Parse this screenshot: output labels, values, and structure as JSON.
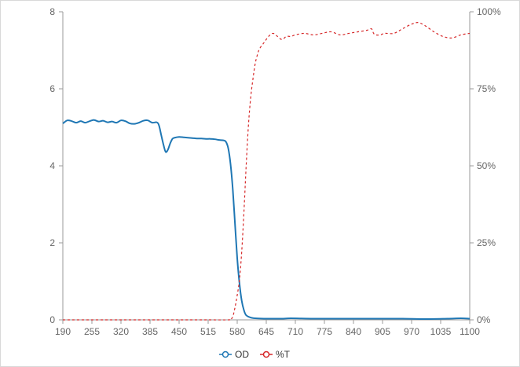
{
  "chart_data": {
    "type": "line",
    "title": "",
    "xlabel": "",
    "ylabel": "",
    "x_ticks": [
      "190",
      "255",
      "320",
      "385",
      "450",
      "515",
      "580",
      "645",
      "710",
      "775",
      "840",
      "905",
      "970",
      "1035",
      "1100"
    ],
    "xlim": [
      190,
      1100
    ],
    "y_left": {
      "ylim": [
        0,
        8
      ],
      "ticks": [
        "0",
        "2",
        "4",
        "6",
        "8"
      ]
    },
    "y_right": {
      "ylim": [
        0,
        100
      ],
      "ticks": [
        "0%",
        "25%",
        "50%",
        "75%",
        "100%"
      ],
      "unit": "%"
    },
    "legend": {
      "placement": "bottom-center"
    },
    "series": [
      {
        "name": "OD",
        "axis": "left",
        "color": "#1f77b4",
        "style": "solid",
        "points": [
          [
            190,
            5.1
          ],
          [
            200,
            5.18
          ],
          [
            210,
            5.16
          ],
          [
            220,
            5.12
          ],
          [
            230,
            5.16
          ],
          [
            240,
            5.12
          ],
          [
            250,
            5.16
          ],
          [
            260,
            5.19
          ],
          [
            270,
            5.15
          ],
          [
            280,
            5.17
          ],
          [
            290,
            5.13
          ],
          [
            300,
            5.15
          ],
          [
            310,
            5.12
          ],
          [
            320,
            5.18
          ],
          [
            330,
            5.16
          ],
          [
            340,
            5.1
          ],
          [
            350,
            5.09
          ],
          [
            360,
            5.12
          ],
          [
            370,
            5.17
          ],
          [
            380,
            5.18
          ],
          [
            390,
            5.12
          ],
          [
            400,
            5.13
          ],
          [
            405,
            5.05
          ],
          [
            410,
            4.8
          ],
          [
            415,
            4.55
          ],
          [
            420,
            4.36
          ],
          [
            425,
            4.42
          ],
          [
            430,
            4.58
          ],
          [
            435,
            4.7
          ],
          [
            440,
            4.73
          ],
          [
            450,
            4.75
          ],
          [
            460,
            4.74
          ],
          [
            470,
            4.73
          ],
          [
            480,
            4.72
          ],
          [
            490,
            4.71
          ],
          [
            500,
            4.71
          ],
          [
            510,
            4.7
          ],
          [
            520,
            4.7
          ],
          [
            530,
            4.69
          ],
          [
            540,
            4.67
          ],
          [
            550,
            4.66
          ],
          [
            555,
            4.62
          ],
          [
            560,
            4.45
          ],
          [
            565,
            4.05
          ],
          [
            570,
            3.4
          ],
          [
            575,
            2.5
          ],
          [
            580,
            1.6
          ],
          [
            585,
            0.95
          ],
          [
            590,
            0.5
          ],
          [
            595,
            0.25
          ],
          [
            600,
            0.12
          ],
          [
            610,
            0.06
          ],
          [
            620,
            0.04
          ],
          [
            640,
            0.03
          ],
          [
            660,
            0.03
          ],
          [
            680,
            0.03
          ],
          [
            700,
            0.04
          ],
          [
            750,
            0.03
          ],
          [
            800,
            0.03
          ],
          [
            850,
            0.03
          ],
          [
            900,
            0.03
          ],
          [
            950,
            0.03
          ],
          [
            1000,
            0.02
          ],
          [
            1050,
            0.03
          ],
          [
            1080,
            0.04
          ],
          [
            1100,
            0.03
          ]
        ]
      },
      {
        "name": "%T",
        "axis": "right",
        "color": "#d62728",
        "style": "dashed",
        "points": [
          [
            190,
            0
          ],
          [
            300,
            0
          ],
          [
            400,
            0
          ],
          [
            500,
            0
          ],
          [
            560,
            0
          ],
          [
            565,
            0.2
          ],
          [
            570,
            1
          ],
          [
            575,
            4
          ],
          [
            580,
            8
          ],
          [
            585,
            13
          ],
          [
            590,
            22
          ],
          [
            595,
            35
          ],
          [
            600,
            50
          ],
          [
            605,
            63
          ],
          [
            610,
            72
          ],
          [
            615,
            78
          ],
          [
            620,
            83
          ],
          [
            625,
            86
          ],
          [
            630,
            88
          ],
          [
            640,
            90
          ],
          [
            650,
            92
          ],
          [
            660,
            93
          ],
          [
            670,
            92
          ],
          [
            680,
            91
          ],
          [
            690,
            92
          ],
          [
            700,
            92
          ],
          [
            710,
            92.5
          ],
          [
            730,
            93
          ],
          [
            750,
            92.5
          ],
          [
            770,
            93
          ],
          [
            790,
            93.5
          ],
          [
            810,
            92.5
          ],
          [
            830,
            93
          ],
          [
            850,
            93.5
          ],
          [
            870,
            94
          ],
          [
            880,
            94.5
          ],
          [
            885,
            93
          ],
          [
            890,
            92.5
          ],
          [
            900,
            92.5
          ],
          [
            910,
            93
          ],
          [
            930,
            93
          ],
          [
            950,
            94.5
          ],
          [
            970,
            96
          ],
          [
            985,
            96.5
          ],
          [
            1000,
            95.5
          ],
          [
            1020,
            93.5
          ],
          [
            1040,
            92
          ],
          [
            1060,
            91.5
          ],
          [
            1080,
            92.5
          ],
          [
            1100,
            93
          ]
        ]
      }
    ]
  }
}
